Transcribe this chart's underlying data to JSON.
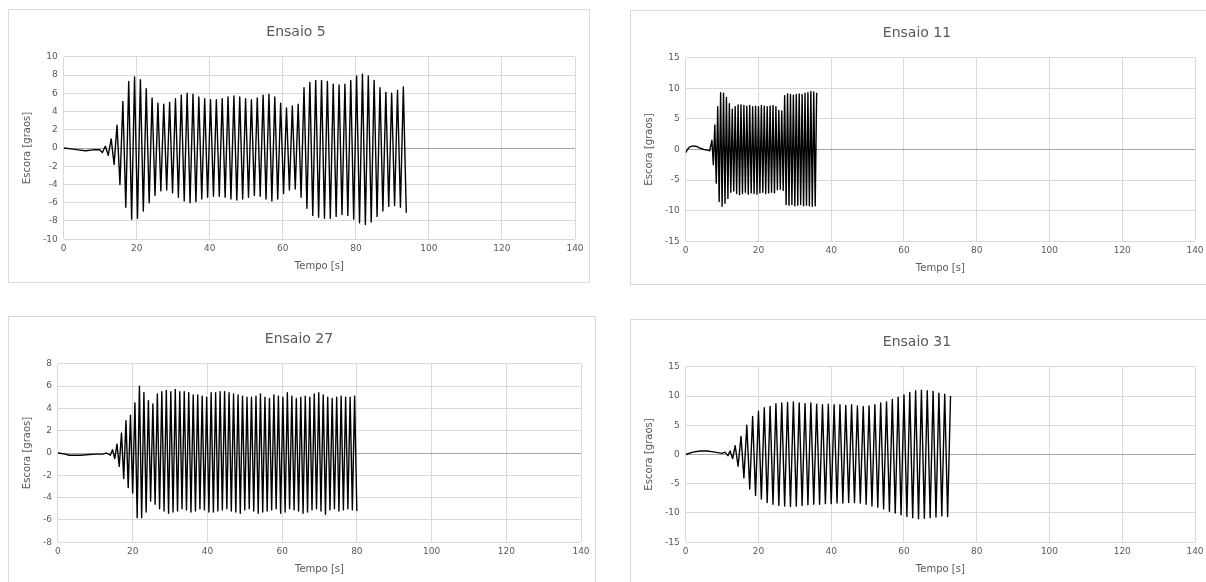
{
  "chart_data": [
    {
      "type": "line",
      "title": "Ensaio 5",
      "xlabel": "Tempo [s]",
      "ylabel": "Escora [graos]",
      "xlim": [
        0,
        140
      ],
      "xticks": [
        0,
        20,
        40,
        60,
        80,
        100,
        120,
        140
      ],
      "ylim": [
        -10,
        10
      ],
      "yticks": [
        -10,
        -8,
        -6,
        -4,
        -2,
        0,
        2,
        4,
        6,
        8,
        10
      ],
      "grid": true,
      "marker": "none",
      "series": [
        {
          "color": "#000000",
          "x": [
            0,
            2,
            4,
            6,
            8,
            9.8,
            10.6,
            11.4,
            12.2,
            13,
            13.8,
            14.6,
            15.4,
            16.2,
            17,
            17.8,
            18.6,
            19.4,
            20.2,
            21,
            21.8,
            22.6,
            23.4,
            24.2,
            25,
            25.8,
            26.6,
            27.4,
            28.2,
            29,
            29.8,
            30.6,
            31.4,
            32.2,
            33,
            33.8,
            34.6,
            35.4,
            36.2,
            37,
            37.8,
            38.6,
            39.4,
            40.2,
            41,
            41.8,
            42.6,
            43.4,
            44.2,
            45,
            45.8,
            46.6,
            47.4,
            48.2,
            49,
            49.8,
            50.6,
            51.4,
            52.2,
            53,
            53.8,
            54.6,
            55.4,
            56.2,
            57,
            57.8,
            58.6,
            59.4,
            60.2,
            61,
            61.8,
            62.6,
            63.4,
            64.2,
            65,
            65.8,
            66.6,
            67.4,
            68.2,
            69,
            69.8,
            70.6,
            71.4,
            72.2,
            73,
            73.8,
            74.6,
            75.4,
            76.2,
            77,
            77.8,
            78.6,
            79.4,
            80.2,
            81,
            81.8,
            82.6,
            83.4,
            84.2,
            85,
            85.8,
            86.6,
            87.4,
            88.2,
            89,
            89.8,
            90.6,
            91.4,
            92.2,
            93,
            93.8
          ],
          "values": [
            0,
            -0.1,
            -0.2,
            -0.3,
            -0.2,
            -0.2,
            -0.5,
            0.2,
            -0.8,
            1.0,
            -1.8,
            2.5,
            -4.0,
            5.1,
            -6.5,
            7.3,
            -7.8,
            7.8,
            -7.7,
            7.5,
            -6.9,
            6.5,
            -6.0,
            5.5,
            -5.2,
            4.9,
            -4.7,
            4.8,
            -4.6,
            5.0,
            -4.9,
            5.4,
            -5.4,
            5.8,
            -5.8,
            6.0,
            -6.0,
            5.9,
            -5.9,
            5.6,
            -5.6,
            5.4,
            -5.4,
            5.3,
            -5.3,
            5.3,
            -5.3,
            5.4,
            -5.4,
            5.6,
            -5.6,
            5.7,
            -5.7,
            5.6,
            -5.6,
            5.4,
            -5.4,
            5.3,
            -5.2,
            5.5,
            -5.3,
            5.8,
            -5.6,
            5.9,
            -5.8,
            5.6,
            -5.6,
            4.9,
            -5.0,
            4.4,
            -4.6,
            4.6,
            -4.5,
            4.8,
            -5.4,
            6.6,
            -6.6,
            7.2,
            -7.4,
            7.4,
            -7.6,
            7.4,
            -7.7,
            7.3,
            -7.7,
            7.0,
            -7.5,
            6.9,
            -7.3,
            7.0,
            -7.4,
            7.4,
            -7.8,
            7.9,
            -8.2,
            8.1,
            -8.4,
            7.9,
            -8.1,
            7.4,
            -7.5,
            6.6,
            -6.9,
            6.1,
            -6.4,
            6.0,
            -6.3,
            6.3,
            -6.5,
            6.7,
            -7.1
          ]
        }
      ]
    },
    {
      "type": "line",
      "title": "Ensaio 11",
      "xlabel": "Tempo [s]",
      "ylabel": "Escora [graos]",
      "xlim": [
        0,
        140
      ],
      "xticks": [
        0,
        20,
        40,
        60,
        80,
        100,
        120,
        140
      ],
      "ylim": [
        -15,
        15
      ],
      "yticks": [
        -15,
        -10,
        -5,
        0,
        5,
        10,
        15
      ],
      "grid": true,
      "marker": "none",
      "series": [
        {
          "color": "#000000",
          "x": [
            0,
            0.5,
            1,
            2,
            3,
            4,
            5,
            6,
            6.6,
            7.2,
            7.6,
            8,
            8.4,
            8.8,
            9.2,
            9.6,
            10,
            10.4,
            10.8,
            11.2,
            11.6,
            12,
            12.4,
            12.8,
            13.2,
            13.6,
            14,
            14.4,
            14.8,
            15.2,
            15.6,
            16,
            16.4,
            16.8,
            17.2,
            17.6,
            18,
            18.4,
            18.8,
            19.2,
            19.6,
            20,
            20.4,
            20.8,
            21.2,
            21.6,
            22,
            22.4,
            22.8,
            23.2,
            23.6,
            24,
            24.4,
            24.8,
            25.2,
            25.6,
            26,
            26.4,
            26.8,
            27.2,
            27.6,
            28,
            28.4,
            28.8,
            29.2,
            29.6,
            30,
            30.4,
            30.8,
            31.2,
            31.6,
            32,
            32.4,
            32.8,
            33.2,
            33.6,
            34,
            34.4,
            34.8,
            35.2,
            35.6,
            36
          ],
          "values": [
            -0.5,
            0,
            0.4,
            0.6,
            0.5,
            0.2,
            0,
            -0.1,
            -0.2,
            1.5,
            -2.5,
            4,
            -5.5,
            7,
            -8.5,
            9.3,
            -9.3,
            9.2,
            -8.8,
            8.5,
            -8,
            7.5,
            -7,
            6.6,
            -6.8,
            7.0,
            -7.2,
            7.3,
            -7.4,
            7.3,
            -7.2,
            7.2,
            -7.0,
            7.1,
            -7.3,
            7.2,
            -7.1,
            7.0,
            -7.2,
            7.1,
            -7.3,
            7.0,
            -7.1,
            7.2,
            -7.0,
            7.1,
            -7.2,
            7.0,
            -7.1,
            7.1,
            -7.0,
            7.2,
            -7.1,
            7.0,
            -6.6,
            6.4,
            -6.5,
            6.3,
            -6.7,
            8.8,
            -9.0,
            9.1,
            -9.1,
            9.0,
            -9.0,
            8.9,
            -9.2,
            9.0,
            -9.1,
            9.1,
            -9.0,
            9.0,
            -9.2,
            9.2,
            -9.1,
            9.3,
            -9.2,
            9.5,
            -9.3,
            9.4,
            -9.2,
            9.3
          ]
        }
      ]
    },
    {
      "type": "line",
      "title": "Ensaio 27",
      "xlabel": "Tempo [s]",
      "ylabel": "Escora [graos]",
      "xlim": [
        0,
        140
      ],
      "xticks": [
        0,
        20,
        40,
        60,
        80,
        100,
        120,
        140
      ],
      "ylim": [
        -8,
        8
      ],
      "yticks": [
        -8,
        -6,
        -4,
        -2,
        0,
        2,
        4,
        6,
        8
      ],
      "grid": true,
      "marker": "none",
      "series": [
        {
          "color": "#000000",
          "x": [
            0,
            2,
            3,
            6,
            10,
            12,
            13,
            14,
            14.6,
            15.2,
            15.8,
            16.4,
            17,
            17.6,
            18.2,
            18.8,
            19.4,
            20,
            20.6,
            21.2,
            21.8,
            22.4,
            23,
            23.6,
            24.2,
            24.8,
            25.4,
            26,
            26.6,
            27.2,
            27.8,
            28.4,
            29,
            29.6,
            30.2,
            30.8,
            31.4,
            32,
            32.6,
            33.2,
            33.8,
            34.4,
            35,
            35.6,
            36.2,
            36.8,
            37.4,
            38,
            38.6,
            39.2,
            39.8,
            40.4,
            41,
            41.6,
            42.2,
            42.8,
            43.4,
            44,
            44.6,
            45.2,
            45.8,
            46.4,
            47,
            47.6,
            48.2,
            48.8,
            49.4,
            50,
            50.6,
            51.2,
            51.8,
            52.4,
            53,
            53.6,
            54.2,
            54.8,
            55.4,
            56,
            56.6,
            57.2,
            57.8,
            58.4,
            59,
            59.6,
            60.2,
            60.8,
            61.4,
            62,
            62.6,
            63.2,
            63.8,
            64.4,
            65,
            65.6,
            66.2,
            66.8,
            67.4,
            68,
            68.6,
            69.2,
            69.8,
            70.4,
            71,
            71.6,
            72.2,
            72.8,
            73.4,
            74,
            74.6,
            75.2,
            75.8,
            76.4,
            77,
            77.6,
            78.2,
            78.8,
            79.4,
            80
          ],
          "values": [
            0,
            -0.1,
            -0.2,
            -0.2,
            -0.1,
            -0.1,
            0,
            -0.2,
            0.3,
            -0.5,
            0.8,
            -1.2,
            1.8,
            -2.3,
            2.9,
            -3.1,
            3.4,
            -3.6,
            4.5,
            -5.8,
            6.0,
            -5.8,
            5.4,
            -5.3,
            4.7,
            -4.3,
            4.4,
            -4.6,
            5.3,
            -5.0,
            5.5,
            -5.2,
            5.6,
            -5.4,
            5.5,
            -5.3,
            5.7,
            -5.2,
            5.5,
            -5.0,
            5.5,
            -5.1,
            5.4,
            -5.3,
            5.2,
            -5.2,
            5.2,
            -5.0,
            5.1,
            -5.1,
            5.0,
            -5.3,
            5.4,
            -5.3,
            5.4,
            -5.2,
            5.5,
            -5.1,
            5.5,
            -5.0,
            5.4,
            -5.2,
            5.3,
            -5.3,
            5.2,
            -5.4,
            5.1,
            -5.1,
            5.0,
            -5.0,
            5.0,
            -5.2,
            5.1,
            -5.4,
            5.3,
            -5.3,
            5.0,
            -5.2,
            4.9,
            -5.1,
            5.2,
            -5.0,
            5.1,
            -5.4,
            5.0,
            -5.3,
            5.4,
            -5.0,
            5.1,
            -5.1,
            4.9,
            -5.2,
            5.0,
            -5.4,
            5.1,
            -5.3,
            5.0,
            -5.1,
            5.3,
            -5.0,
            5.4,
            -5.2,
            5.2,
            -5.5,
            5.0,
            -5.1,
            4.9,
            -5.0,
            5.0,
            -5.2,
            5.1,
            -5.1,
            5.0,
            -5.0,
            5.0,
            -5.1,
            5.1,
            -5.2
          ]
        }
      ]
    },
    {
      "type": "line",
      "title": "Ensaio 31",
      "xlabel": "Tempo [s]",
      "ylabel": "Escora [graos]",
      "xlim": [
        0,
        140
      ],
      "xticks": [
        0,
        20,
        40,
        60,
        80,
        100,
        120,
        140
      ],
      "ylim": [
        -15,
        15
      ],
      "yticks": [
        -15,
        -10,
        -5,
        0,
        5,
        10,
        15
      ],
      "grid": true,
      "marker": "none",
      "series": [
        {
          "color": "#000000",
          "x": [
            0,
            2,
            4,
            6,
            8,
            10,
            10.8,
            11.6,
            12.2,
            12.9,
            13.6,
            14.4,
            15.2,
            16,
            16.8,
            17.6,
            18.4,
            19.2,
            20,
            20.8,
            21.6,
            22.4,
            23.2,
            24,
            24.8,
            25.6,
            26.4,
            27.2,
            28,
            28.8,
            29.6,
            30.4,
            31.2,
            32,
            32.8,
            33.6,
            34.4,
            35.2,
            36,
            36.8,
            37.6,
            38.4,
            39.2,
            40,
            40.8,
            41.6,
            42.4,
            43.2,
            44,
            44.8,
            45.6,
            46.4,
            47.2,
            48,
            48.8,
            49.6,
            50.4,
            51.2,
            52,
            52.8,
            53.6,
            54.4,
            55.2,
            56,
            56.8,
            57.6,
            58.4,
            59.2,
            60,
            60.8,
            61.6,
            62.4,
            63.2,
            64,
            64.8,
            65.6,
            66.4,
            67.2,
            68,
            68.8,
            69.6,
            70.4,
            71.2,
            72,
            72.8
          ],
          "values": [
            0,
            0.4,
            0.6,
            0.6,
            0.4,
            0.2,
            0.4,
            -0.2,
            0.6,
            -0.7,
            1.5,
            -2.0,
            3.1,
            -4.0,
            5.0,
            -5.9,
            6.5,
            -7.0,
            7.4,
            -7.6,
            8.0,
            -8.2,
            8.2,
            -8.5,
            8.7,
            -8.7,
            8.8,
            -8.8,
            8.9,
            -8.9,
            9.0,
            -8.8,
            8.8,
            -8.7,
            8.7,
            -8.6,
            8.8,
            -8.5,
            8.6,
            -8.5,
            8.5,
            -8.4,
            8.6,
            -8.4,
            8.5,
            -8.3,
            8.5,
            -8.3,
            8.4,
            -8.2,
            8.5,
            -8.2,
            8.3,
            -8.3,
            8.2,
            -8.5,
            8.3,
            -8.8,
            8.5,
            -9.0,
            8.8,
            -9.3,
            9.0,
            -9.7,
            9.4,
            -10.0,
            9.8,
            -10.3,
            10.2,
            -10.6,
            10.6,
            -10.8,
            10.9,
            -11.0,
            11.0,
            -10.9,
            10.9,
            -10.8,
            10.8,
            -10.7,
            10.5,
            -10.5,
            10.3,
            -10.6,
            10.0
          ]
        }
      ]
    }
  ]
}
